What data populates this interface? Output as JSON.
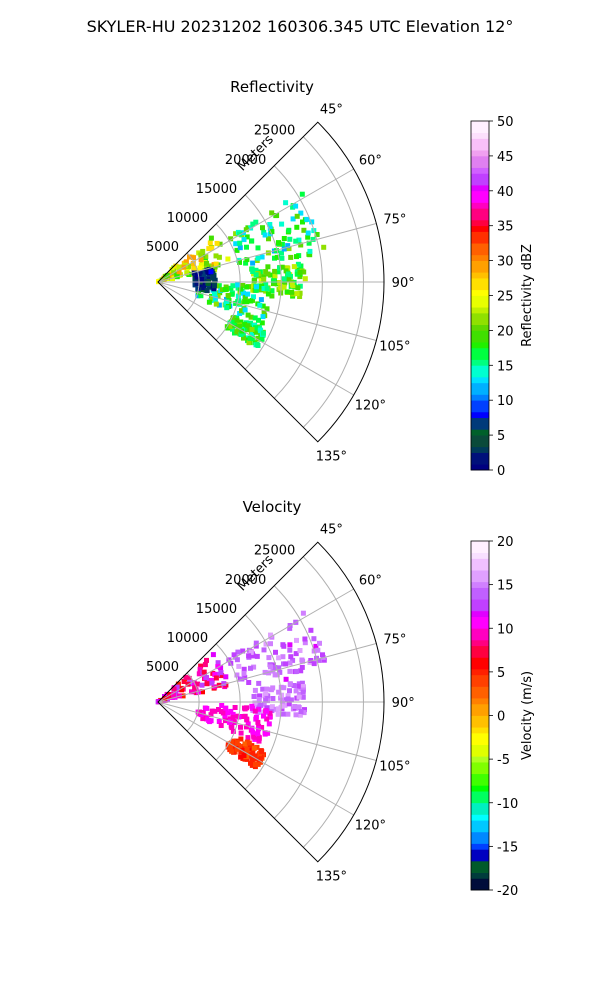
{
  "figure": {
    "title": "SKYLER-HU  20231202  160306.345 UTC Elevation 12°"
  },
  "chart_data": [
    {
      "type": "heatmap",
      "projection": "polar-sector (PPI)",
      "title": "Reflectivity",
      "range_label": "Meters",
      "range_ticks": [
        5000,
        10000,
        15000,
        20000,
        25000
      ],
      "range_lim": [
        0,
        27500
      ],
      "azimuth_ticks": [
        "45°",
        "60°",
        "75°",
        "90°",
        "105°",
        "120°",
        "135°"
      ],
      "azimuth_lim": [
        45,
        135
      ],
      "grid": true,
      "colorbar": {
        "label": "Reflectivity dBZ",
        "ticks": [
          0,
          5,
          10,
          15,
          20,
          25,
          30,
          35,
          40,
          45,
          50
        ],
        "lim": [
          0,
          50
        ],
        "colormap": "pyart_NWSRef"
      },
      "echo_regions": [
        {
          "az": [
            48,
            78
          ],
          "range_m": [
            0,
            9000
          ],
          "value_range": [
            18,
            30
          ]
        },
        {
          "az": [
            58,
            80
          ],
          "range_m": [
            10000,
            21000
          ],
          "value_range": [
            12,
            22
          ]
        },
        {
          "az": [
            82,
            96
          ],
          "range_m": [
            11500,
            18000
          ],
          "value_range": [
            15,
            24
          ]
        },
        {
          "az": [
            92,
            112
          ],
          "range_m": [
            5000,
            14000
          ],
          "value_range": [
            12,
            22
          ]
        },
        {
          "az": [
            114,
            124
          ],
          "range_m": [
            10000,
            14500
          ],
          "value_range": [
            14,
            22
          ]
        },
        {
          "az": [
            76,
            100
          ],
          "range_m": [
            4500,
            7000
          ],
          "value_range": [
            0,
            8
          ]
        }
      ]
    },
    {
      "type": "heatmap",
      "projection": "polar-sector (PPI)",
      "title": "Velocity",
      "range_label": "Meters",
      "range_ticks": [
        5000,
        10000,
        15000,
        20000,
        25000
      ],
      "range_lim": [
        0,
        27500
      ],
      "azimuth_ticks": [
        "45°",
        "60°",
        "75°",
        "90°",
        "105°",
        "120°",
        "135°"
      ],
      "azimuth_lim": [
        45,
        135
      ],
      "grid": true,
      "colorbar": {
        "label": "Velocity (m/s)",
        "ticks": [
          -20,
          -15,
          -10,
          -5,
          0,
          5,
          10,
          15,
          20
        ],
        "lim": [
          -20,
          20
        ],
        "colormap": "pyart_BuDRd18"
      },
      "echo_regions": [
        {
          "az": [
            48,
            78
          ],
          "range_m": [
            0,
            9000
          ],
          "value_range": [
            5,
            14
          ]
        },
        {
          "az": [
            58,
            80
          ],
          "range_m": [
            10000,
            21000
          ],
          "value_range": [
            12,
            16
          ]
        },
        {
          "az": [
            82,
            96
          ],
          "range_m": [
            11500,
            18000
          ],
          "value_range": [
            13,
            16
          ]
        },
        {
          "az": [
            92,
            112
          ],
          "range_m": [
            5000,
            14000
          ],
          "value_range": [
            9,
            11
          ]
        },
        {
          "az": [
            114,
            124
          ],
          "range_m": [
            10000,
            14500
          ],
          "value_range": [
            3,
            6
          ]
        }
      ]
    }
  ],
  "colors": {
    "grid": "#b0b0b0",
    "axes": "#000000",
    "background": "#ffffff"
  }
}
